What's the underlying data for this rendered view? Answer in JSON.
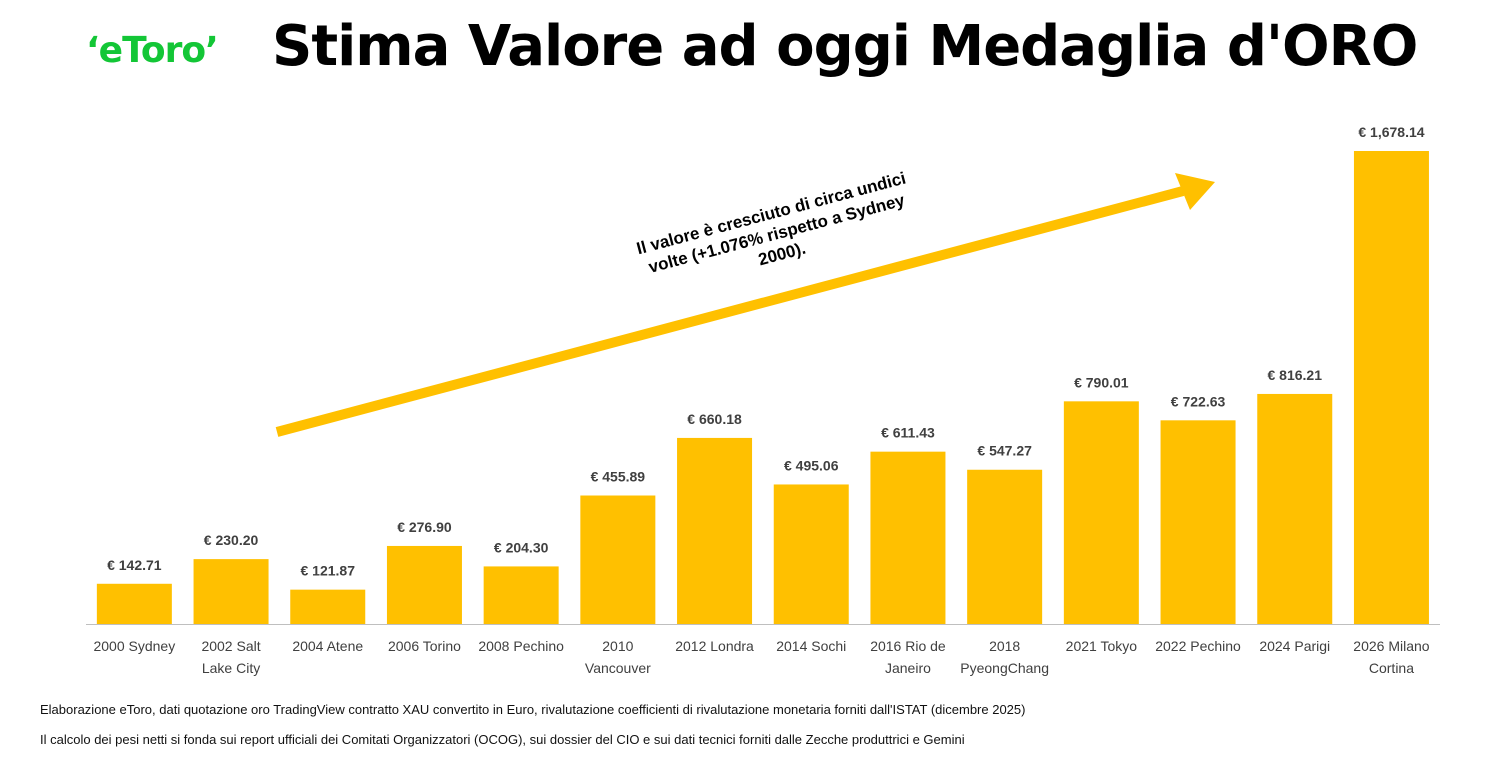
{
  "brand": {
    "logo_text": "‘eToro’",
    "logo_color": "#13c636"
  },
  "title": "Stima Valore ad oggi Medaglia d'ORO",
  "colors": {
    "bar": "#FFC000",
    "arrow": "#FFC000",
    "axis": "#bfbfbf"
  },
  "annotation": {
    "lines": [
      "Il valore è cresciuto di circa undici",
      "volte (+1.076% rispetto a Sydney",
      "2000)."
    ]
  },
  "chart_data": {
    "type": "bar",
    "categories": [
      [
        "2000 Sydney"
      ],
      [
        "2002 Salt",
        "Lake City"
      ],
      [
        "2004 Atene"
      ],
      [
        "2006 Torino"
      ],
      [
        "2008 Pechino"
      ],
      [
        "2010",
        "Vancouver"
      ],
      [
        "2012 Londra"
      ],
      [
        "2014 Sochi"
      ],
      [
        "2016 Rio de",
        "Janeiro"
      ],
      [
        "2018",
        "PyeongChang"
      ],
      [
        "2021 Tokyo"
      ],
      [
        "2022 Pechino"
      ],
      [
        "2024 Parigi"
      ],
      [
        "2026 Milano",
        "Cortina"
      ]
    ],
    "values": [
      142.71,
      230.2,
      121.87,
      276.9,
      204.3,
      455.89,
      660.18,
      495.06,
      611.43,
      547.27,
      790.01,
      722.63,
      816.21,
      1678.14
    ],
    "data_labels": [
      "€ 142.71",
      "€ 230.20",
      "€ 121.87",
      "€ 276.90",
      "€ 204.30",
      "€ 455.89",
      "€ 660.18",
      "€ 495.06",
      "€ 611.43",
      "€ 547.27",
      "€ 790.01",
      "€ 722.63",
      "€ 816.21",
      "€ 1,678.14"
    ],
    "ylim": [
      0,
      1678.14
    ],
    "grid": false,
    "legend": "none",
    "xlabel": "",
    "ylabel": ""
  },
  "footnotes": [
    "Elaborazione eToro, dati quotazione oro TradingView contratto XAU convertito in Euro, rivalutazione coefficienti di rivalutazione monetaria forniti dall'ISTAT (dicembre 2025)",
    "Il calcolo dei pesi netti si fonda sui report ufficiali dei Comitati Organizzatori (OCOG), sui dossier del CIO e sui dati tecnici forniti dalle Zecche produttrici e Gemini"
  ]
}
